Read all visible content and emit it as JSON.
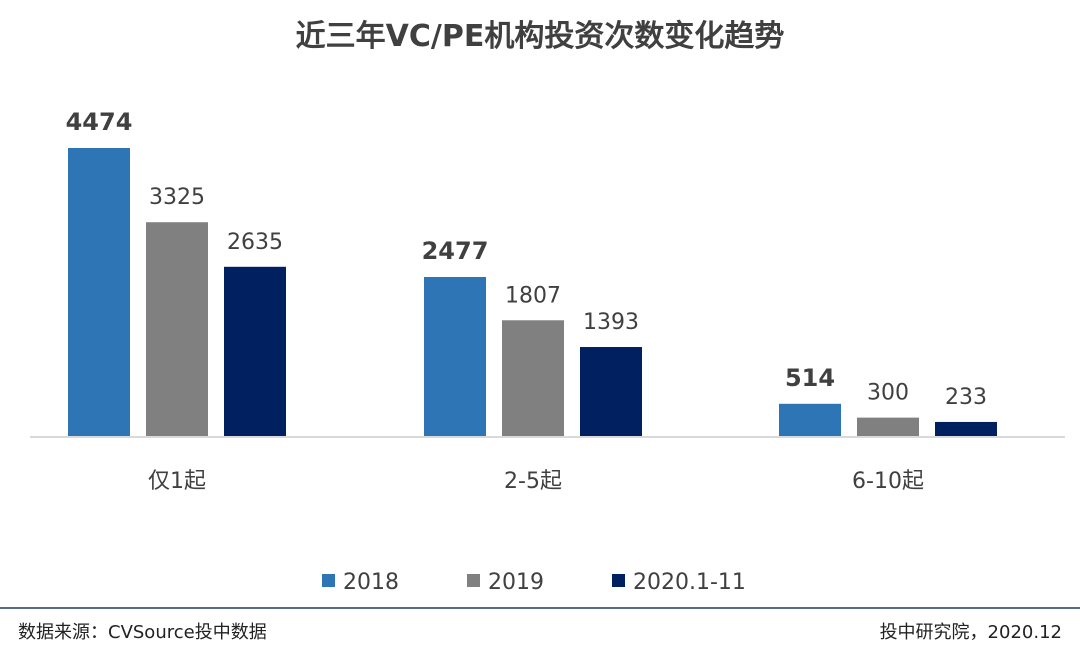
{
  "chart_data": {
    "type": "bar",
    "title": "近三年VC/PE机构投资次数变化趋势",
    "categories": [
      "仅1起",
      "2-5起",
      "6-10起"
    ],
    "series": [
      {
        "name": "2018",
        "color": "#2E75B6",
        "values": [
          4474,
          2477,
          514
        ]
      },
      {
        "name": "2019",
        "color": "#808080",
        "values": [
          3325,
          1807,
          300
        ]
      },
      {
        "name": "2020.1-11",
        "color": "#002060",
        "values": [
          2635,
          1393,
          233
        ]
      }
    ],
    "xlabel": "",
    "ylabel": "",
    "ylim": [
      0,
      4474
    ],
    "grid": false,
    "legend_position": "bottom"
  },
  "footer": {
    "source": "数据来源：CVSource投中数据",
    "credit": "投中研究院，2020.12"
  },
  "colors": {
    "axis": "#D9D9D9",
    "divider": "#1F3864",
    "text": "#404040"
  }
}
